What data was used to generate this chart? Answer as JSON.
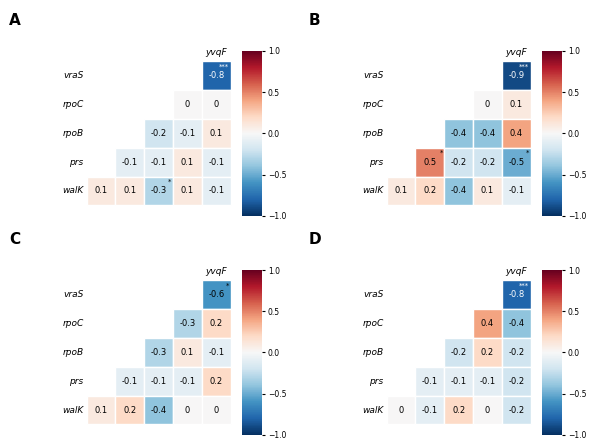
{
  "panels": [
    {
      "label": "A",
      "values": {
        "vraS_yvqF": -0.8,
        "rpoC_yvqF": 0.0,
        "rpoC_vraS": 0.0,
        "rpoB_yvqF": 0.1,
        "rpoB_vraS": -0.1,
        "rpoB_rpoC": -0.2,
        "prs_yvqF": -0.1,
        "prs_vraS": 0.1,
        "prs_rpoC": -0.1,
        "prs_rpoB": -0.1,
        "walK_yvqF": -0.1,
        "walK_vraS": 0.1,
        "walK_rpoC": -0.3,
        "walK_rpoB": 0.1,
        "walK_prs": 0.1
      },
      "significance": {
        "vraS_yvqF": "***",
        "walK_rpoC": "*"
      }
    },
    {
      "label": "B",
      "values": {
        "vraS_yvqF": -0.9,
        "rpoC_yvqF": 0.1,
        "rpoC_vraS": 0.0,
        "rpoB_yvqF": 0.4,
        "rpoB_vraS": -0.4,
        "rpoB_rpoC": -0.4,
        "prs_yvqF": -0.5,
        "prs_vraS": -0.2,
        "prs_rpoC": -0.2,
        "prs_rpoB": 0.5,
        "walK_yvqF": -0.1,
        "walK_vraS": 0.1,
        "walK_rpoC": -0.4,
        "walK_rpoB": 0.2,
        "walK_prs": 0.1
      },
      "significance": {
        "vraS_yvqF": "***",
        "prs_rpoB": "*",
        "prs_yvqF": "*"
      }
    },
    {
      "label": "C",
      "values": {
        "vraS_yvqF": -0.6,
        "rpoC_yvqF": 0.2,
        "rpoC_vraS": -0.3,
        "rpoB_yvqF": -0.1,
        "rpoB_vraS": 0.1,
        "rpoB_rpoC": -0.3,
        "prs_yvqF": 0.2,
        "prs_vraS": -0.1,
        "prs_rpoC": -0.1,
        "prs_rpoB": -0.1,
        "walK_yvqF": 0.0,
        "walK_vraS": 0.0,
        "walK_rpoC": -0.4,
        "walK_rpoB": 0.2,
        "walK_prs": 0.1
      },
      "significance": {
        "vraS_yvqF": "*"
      }
    },
    {
      "label": "D",
      "values": {
        "vraS_yvqF": -0.8,
        "rpoC_yvqF": -0.4,
        "rpoC_vraS": 0.4,
        "rpoB_yvqF": -0.2,
        "rpoB_vraS": 0.2,
        "rpoB_rpoC": -0.2,
        "prs_yvqF": -0.2,
        "prs_vraS": -0.1,
        "prs_rpoC": -0.1,
        "prs_rpoB": -0.1,
        "walK_yvqF": -0.2,
        "walK_vraS": 0.0,
        "walK_rpoC": 0.2,
        "walK_rpoB": -0.1,
        "walK_prs": 0.0
      },
      "significance": {
        "vraS_yvqF": "***"
      }
    }
  ],
  "genes": [
    "walK",
    "prs",
    "rpoB",
    "rpoC",
    "vraS",
    "yvqF"
  ],
  "colorbar_ticks": [
    1.0,
    0.5,
    0.0,
    -0.5,
    -1.0
  ],
  "vmin": -1.0,
  "vmax": 1.0,
  "cmap": "RdBu_r"
}
